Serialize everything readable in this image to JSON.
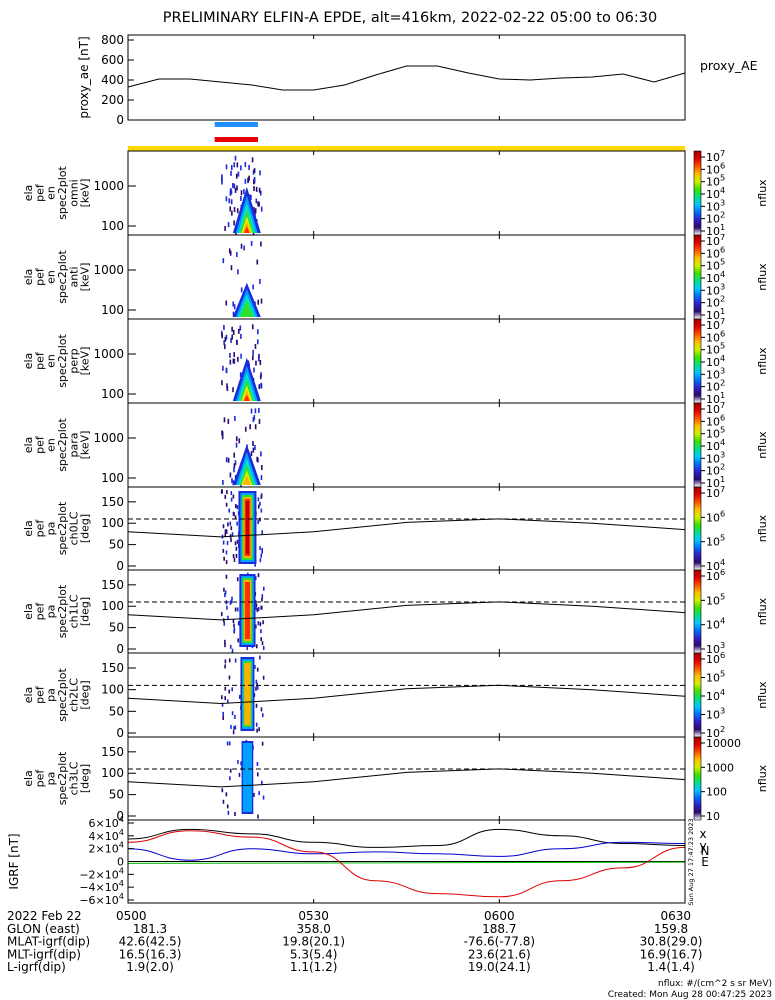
{
  "title": "PRELIMINARY ELFIN-A EPDE, alt=416km, 2022-02-22 05:00 to 06:30",
  "colors": {
    "orbit_bar_blue": "#1e90ff",
    "orbit_bar_red": "#e60000",
    "science_bar_yellow": "#ffd700",
    "bx": "#000000",
    "by": "#0000cc",
    "bz": "#dd0000",
    "b_extra": "#00bb00",
    "label_N": "#ff00ff",
    "label_E": "#00dd00"
  },
  "proxy_ae": {
    "ylabel": "proxy_ae [nT]",
    "legend": "proxy_AE",
    "ticks": [
      "800",
      "600",
      "400",
      "200",
      "0"
    ],
    "ylim": [
      0,
      800
    ]
  },
  "energy_panels": [
    {
      "ylabel": [
        "ela",
        "pef",
        "en",
        "spec2plot",
        "omni",
        "[keV]"
      ],
      "ticks": [
        "1000",
        "100"
      ]
    },
    {
      "ylabel": [
        "ela",
        "pef",
        "en",
        "spec2plot",
        "anti",
        "[keV]"
      ],
      "ticks": [
        "1000",
        "100"
      ]
    },
    {
      "ylabel": [
        "ela",
        "pef",
        "en",
        "spec2plot",
        "perp",
        "[keV]"
      ],
      "ticks": [
        "1000",
        "100"
      ]
    },
    {
      "ylabel": [
        "ela",
        "pef",
        "en",
        "spec2plot",
        "para",
        "[keV]"
      ],
      "ticks": [
        "1000",
        "100"
      ]
    }
  ],
  "pa_panels": [
    {
      "ylabel": [
        "ela",
        "pef",
        "pa",
        "spec2plot",
        "ch0LC",
        "[deg]"
      ],
      "ticks": [
        "150",
        "100",
        "50",
        "0"
      ]
    },
    {
      "ylabel": [
        "ela",
        "pef",
        "pa",
        "spec2plot",
        "ch1LC",
        "[deg]"
      ],
      "ticks": [
        "150",
        "100",
        "50",
        "0"
      ]
    },
    {
      "ylabel": [
        "ela",
        "pef",
        "pa",
        "spec2plot",
        "ch2LC",
        "[deg]"
      ],
      "ticks": [
        "150",
        "100",
        "50",
        "0"
      ]
    },
    {
      "ylabel": [
        "ela",
        "pef",
        "pa",
        "spec2plot",
        "ch3LC",
        "[deg]"
      ],
      "ticks": [
        "150",
        "100",
        "50",
        "0"
      ]
    }
  ],
  "colorbars": [
    {
      "label": "nflux",
      "ticks": [
        "10^7",
        "10^6",
        "10^5",
        "10^4",
        "10^3",
        "10^2",
        "10^1"
      ]
    },
    {
      "label": "nflux",
      "ticks": [
        "10^7",
        "10^6",
        "10^5",
        "10^4",
        "10^3",
        "10^2",
        "10^1"
      ]
    },
    {
      "label": "nflux",
      "ticks": [
        "10^7",
        "10^6",
        "10^5",
        "10^4",
        "10^3",
        "10^2",
        "10^1"
      ]
    },
    {
      "label": "nflux",
      "ticks": [
        "10^7",
        "10^6",
        "10^5",
        "10^4",
        "10^3",
        "10^2",
        "10^1"
      ]
    },
    {
      "label": "nflux",
      "ticks": [
        "10^7",
        "10^6",
        "10^5",
        "10^4"
      ]
    },
    {
      "label": "nflux",
      "ticks": [
        "10^6",
        "10^5",
        "10^4",
        "10^3"
      ]
    },
    {
      "label": "nflux",
      "ticks": [
        "10^6",
        "10^5",
        "10^4",
        "10^3",
        "10^2"
      ]
    },
    {
      "label": "nflux",
      "ticks": [
        "10000",
        "1000",
        "100",
        "10"
      ]
    }
  ],
  "igrf": {
    "ylabel": "IGRF [nT]",
    "ticks": [
      "6×10^4",
      "4×10^4",
      "2×10^4",
      "0",
      "−2×10^4",
      "−4×10^4",
      "−6×10^4"
    ],
    "ylim": [
      -60000,
      60000
    ],
    "labels": {
      "x": "x",
      "y": "y",
      "N": "N",
      "E": "E"
    }
  },
  "annotations": {
    "date": "2022 Feb 22",
    "run_stamp": "Sun Aug 27 17:47:23 2023"
  },
  "time_axis": {
    "ticks": [
      "0500",
      "0530",
      "0600",
      "0630"
    ],
    "rows": [
      {
        "label": "GLON (east)",
        "values": [
          "181.3",
          "358.0",
          "188.7",
          "159.8"
        ]
      },
      {
        "label": "MLAT-igrf(dip)",
        "values": [
          "42.6(42.5)",
          "19.8(20.1)",
          "-76.6(-77.8)",
          "30.8(29.0)"
        ]
      },
      {
        "label": "MLT-igrf(dip)",
        "values": [
          "16.5(16.3)",
          "5.3(5.4)",
          "23.6(21.6)",
          "16.9(16.7)"
        ]
      },
      {
        "label": "L-igrf(dip)",
        "values": [
          "1.9(2.0)",
          "1.1(1.2)",
          "19.0(24.1)",
          "1.4(1.4)"
        ]
      }
    ]
  },
  "footer": {
    "units": "nflux: #/(cm^2 s sr MeV)",
    "created": "Created: Mon Aug 28 00:47:25 2023"
  },
  "chart_data": [
    {
      "type": "line",
      "name": "proxy_AE",
      "x_minutes": [
        0,
        5,
        10,
        15,
        20,
        25,
        30,
        35,
        40,
        45,
        50,
        55,
        60,
        65,
        70,
        75,
        80,
        85,
        90
      ],
      "values": [
        330,
        410,
        410,
        380,
        350,
        300,
        300,
        350,
        450,
        540,
        540,
        470,
        410,
        400,
        420,
        430,
        460,
        380,
        470
      ],
      "ylim": [
        0,
        800
      ]
    },
    {
      "type": "heatmap",
      "description_x_minutes": [
        17,
        21
      ],
      "ylim_energy_keV": [
        63,
        7000
      ],
      "ylim_pa_deg": [
        0,
        180
      ],
      "loss_cone_dashed_deg": 110,
      "pa_solid_line": {
        "x_minutes": [
          0,
          15,
          30,
          45,
          60,
          75,
          90
        ],
        "values": [
          80,
          68,
          80,
          102,
          110,
          100,
          85
        ]
      }
    },
    {
      "type": "line",
      "x_minutes": [
        0,
        10,
        20,
        30,
        40,
        50,
        60,
        70,
        80,
        90
      ],
      "series": [
        {
          "name": "x",
          "values": [
            35000,
            50000,
            43000,
            30000,
            22000,
            25000,
            50000,
            40000,
            28000,
            25000
          ]
        },
        {
          "name": "y",
          "values": [
            20000,
            2000,
            20000,
            12000,
            15000,
            12000,
            8000,
            20000,
            30000,
            28000
          ]
        },
        {
          "name": "z",
          "values": [
            30000,
            48000,
            38000,
            15000,
            -30000,
            -50000,
            -55000,
            -30000,
            -10000,
            22000
          ]
        }
      ],
      "ylim": [
        -60000,
        60000
      ]
    }
  ]
}
